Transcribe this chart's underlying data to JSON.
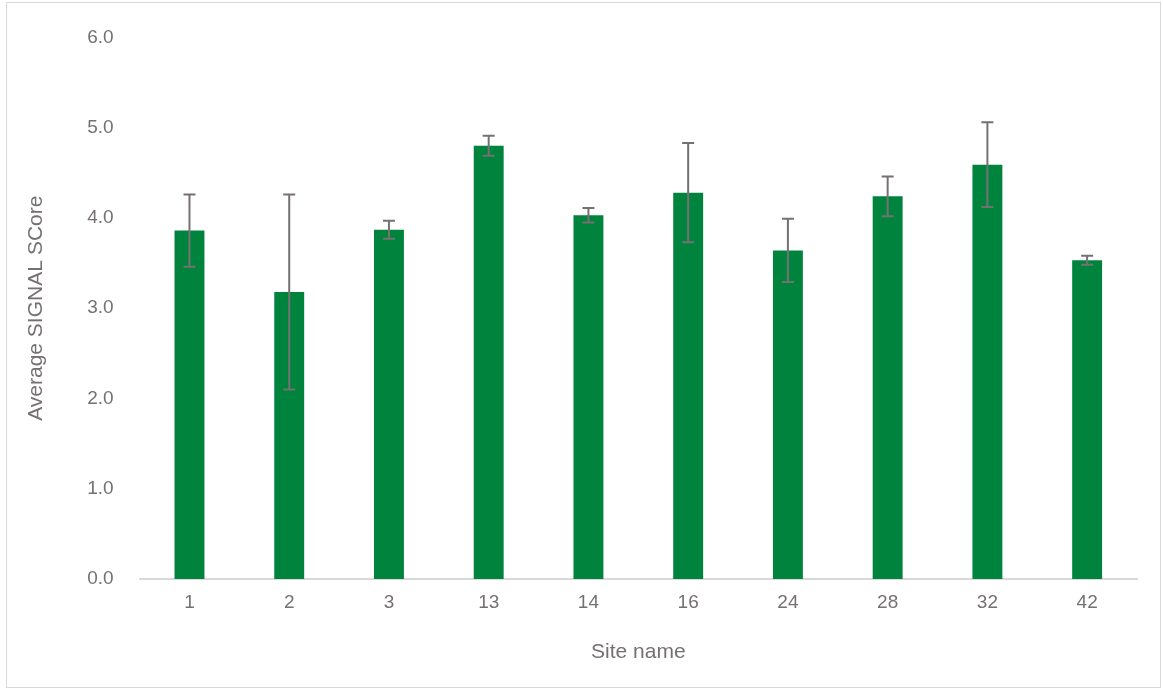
{
  "chart_data": {
    "type": "bar",
    "xlabel": "Site name",
    "ylabel": "Average SIGNAL SCore",
    "categories": [
      "1",
      "2",
      "3",
      "13",
      "14",
      "16",
      "24",
      "28",
      "32",
      "42"
    ],
    "values": [
      3.86,
      3.18,
      3.87,
      4.8,
      4.03,
      4.28,
      3.64,
      4.24,
      4.59,
      3.53
    ],
    "errors": [
      0.4,
      1.08,
      0.1,
      0.11,
      0.08,
      0.55,
      0.35,
      0.22,
      0.47,
      0.05
    ],
    "color": "#00843d",
    "ylim": [
      0,
      6
    ],
    "yticks": [
      {
        "value": 0,
        "label": "0.0"
      },
      {
        "value": 1,
        "label": "1.0"
      },
      {
        "value": 2,
        "label": "2.0"
      },
      {
        "value": 3,
        "label": "3.0"
      },
      {
        "value": 4,
        "label": "4.0"
      },
      {
        "value": 5,
        "label": "5.0"
      },
      {
        "value": 6,
        "label": "6.0"
      }
    ],
    "grid": false,
    "legend": false
  }
}
